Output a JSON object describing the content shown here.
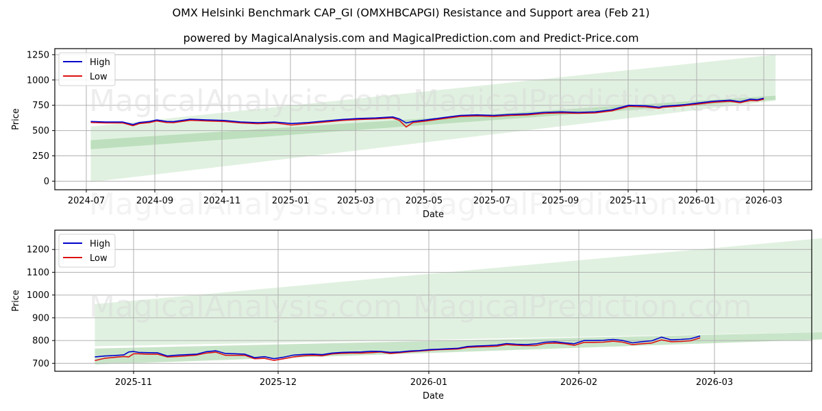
{
  "header": {
    "title": "OMX Helsinki Benchmark CAP_GI (OMXHBCAPGI) Resistance and Support area (Feb 21)",
    "subtitle": "powered by MagicalAnalysis.com and MagicalPrediction.com and Predict-Price.com"
  },
  "watermarks": [
    "MagicalAnalysis.com",
    "MagicalPrediction.com"
  ],
  "colors": {
    "high": "#0000cc",
    "low": "#dd1111",
    "band_light": "#c8e6c8",
    "band_dark": "#a5d3a5",
    "grid": "#b0b0b0"
  },
  "chart_data": [
    {
      "type": "line",
      "title": "",
      "xlabel": "Date",
      "ylabel": "Price",
      "ylim": [
        -85,
        1310
      ],
      "grid": true,
      "legend": {
        "position": "upper left",
        "entries": [
          "High",
          "Low"
        ]
      },
      "x_ticks": [
        "2024-07",
        "2024-09",
        "2024-11",
        "2025-01",
        "2025-03",
        "2025-05",
        "2025-07",
        "2025-09",
        "2025-11",
        "2026-01",
        "2026-03"
      ],
      "y_ticks": [
        0,
        250,
        500,
        750,
        1000,
        1250
      ],
      "x_range_months": [
        -0.4,
        20.5
      ],
      "series": [
        {
          "name": "High",
          "x": [
            0.05,
            0.5,
            1.0,
            1.3,
            1.5,
            1.8,
            2.0,
            2.3,
            2.5,
            3.0,
            3.5,
            4.0,
            4.5,
            5.0,
            5.5,
            6.0,
            6.5,
            7.0,
            7.5,
            8.0,
            8.5,
            9.0,
            9.2,
            9.4,
            9.6,
            10.0,
            10.5,
            11.0,
            11.5,
            12.0,
            12.5,
            13.0,
            13.5,
            14.0,
            14.5,
            15.0,
            15.5,
            16.0,
            16.5,
            16.9,
            17.0,
            17.5,
            17.7,
            18.0,
            18.5,
            19.0,
            19.3,
            19.6,
            19.8,
            20.0
          ],
          "y": [
            590,
            585,
            585,
            560,
            580,
            590,
            605,
            590,
            588,
            612,
            605,
            600,
            585,
            578,
            585,
            570,
            580,
            595,
            610,
            620,
            625,
            635,
            615,
            575,
            590,
            605,
            628,
            650,
            655,
            650,
            660,
            665,
            680,
            685,
            680,
            685,
            705,
            750,
            745,
            730,
            740,
            752,
            758,
            770,
            790,
            800,
            785,
            810,
            805,
            820
          ]
        },
        {
          "name": "Low",
          "x": [
            0.05,
            0.5,
            1.0,
            1.3,
            1.5,
            1.8,
            2.0,
            2.3,
            2.5,
            3.0,
            3.5,
            4.0,
            4.5,
            5.0,
            5.5,
            6.0,
            6.5,
            7.0,
            7.5,
            8.0,
            8.5,
            9.0,
            9.2,
            9.4,
            9.6,
            10.0,
            10.5,
            11.0,
            11.5,
            12.0,
            12.5,
            13.0,
            13.5,
            14.0,
            14.5,
            15.0,
            15.5,
            16.0,
            16.5,
            16.9,
            17.0,
            17.5,
            17.7,
            18.0,
            18.5,
            19.0,
            19.3,
            19.6,
            19.8,
            20.0
          ],
          "y": [
            580,
            575,
            575,
            548,
            570,
            580,
            595,
            580,
            578,
            602,
            595,
            590,
            575,
            568,
            575,
            555,
            570,
            585,
            600,
            610,
            615,
            625,
            600,
            535,
            580,
            595,
            618,
            640,
            645,
            640,
            650,
            655,
            670,
            675,
            670,
            675,
            695,
            740,
            735,
            720,
            730,
            742,
            748,
            760,
            780,
            790,
            775,
            798,
            795,
            810
          ]
        }
      ],
      "bands": [
        {
          "name": "outer",
          "x": [
            0.05,
            20.35
          ],
          "upper": [
            540,
            1250
          ],
          "lower": [
            -10,
            795
          ]
        },
        {
          "name": "inner",
          "x": [
            0.05,
            20.35
          ],
          "upper": [
            405,
            845
          ],
          "lower": [
            315,
            805
          ]
        }
      ]
    },
    {
      "type": "line",
      "title": "",
      "xlabel": "Date",
      "ylabel": "Price",
      "ylim": [
        665,
        1285
      ],
      "grid": true,
      "legend": {
        "position": "upper left",
        "entries": [
          "High",
          "Low"
        ]
      },
      "x_ticks": [
        "2025-11",
        "2025-12",
        "2026-01",
        "2026-02",
        "2026-03"
      ],
      "y_ticks": [
        700,
        800,
        900,
        1000,
        1100,
        1200
      ],
      "x_range_days": [
        -12.5,
        153
      ],
      "series": [
        {
          "name": "High",
          "x": [
            -8,
            -6,
            -4,
            -2,
            -1,
            0,
            1,
            3,
            5,
            7,
            9,
            11,
            13,
            15,
            17,
            19,
            21,
            23,
            25,
            27,
            29,
            31,
            33,
            35,
            37,
            39,
            41,
            43,
            45,
            47,
            49,
            51,
            53,
            55,
            57,
            59,
            61,
            63,
            65,
            67,
            69,
            71,
            73,
            75,
            77,
            79,
            81,
            83,
            85,
            87,
            89,
            91,
            93,
            95,
            97,
            99,
            101,
            103,
            105,
            107,
            109,
            111,
            113,
            115,
            117
          ],
          "y": [
            728,
            732,
            734,
            737,
            750,
            752,
            748,
            747,
            746,
            732,
            736,
            738,
            740,
            751,
            755,
            743,
            742,
            740,
            725,
            729,
            720,
            727,
            736,
            739,
            740,
            738,
            745,
            748,
            749,
            750,
            753,
            752,
            748,
            750,
            754,
            756,
            760,
            762,
            764,
            766,
            774,
            776,
            778,
            780,
            787,
            784,
            782,
            785,
            793,
            795,
            790,
            786,
            800,
            800,
            801,
            805,
            800,
            790,
            795,
            799,
            815,
            803,
            805,
            808,
            820
          ]
        },
        {
          "name": "Low",
          "x": [
            -8,
            -6,
            -4,
            -2,
            -1,
            0,
            1,
            3,
            5,
            7,
            9,
            11,
            13,
            15,
            17,
            19,
            21,
            23,
            25,
            27,
            29,
            31,
            33,
            35,
            37,
            39,
            41,
            43,
            45,
            47,
            49,
            51,
            53,
            55,
            57,
            59,
            61,
            63,
            65,
            67,
            69,
            71,
            73,
            75,
            77,
            79,
            81,
            83,
            85,
            87,
            89,
            91,
            93,
            95,
            97,
            99,
            101,
            103,
            105,
            107,
            109,
            111,
            113,
            115,
            117
          ],
          "y": [
            712,
            722,
            726,
            730,
            728,
            742,
            742,
            740,
            740,
            728,
            730,
            733,
            736,
            745,
            749,
            735,
            735,
            735,
            720,
            722,
            713,
            720,
            728,
            733,
            735,
            733,
            741,
            744,
            745,
            745,
            747,
            750,
            743,
            747,
            751,
            754,
            757,
            760,
            761,
            763,
            770,
            772,
            773,
            775,
            782,
            779,
            778,
            778,
            787,
            789,
            786,
            779,
            792,
            792,
            793,
            797,
            793,
            782,
            786,
            789,
            803,
            795,
            796,
            799,
            812
          ]
        }
      ],
      "bands": [
        {
          "name": "outer",
          "x": [
            -8,
            145
          ],
          "upper": [
            960,
            1255
          ],
          "lower": [
            775,
            838
          ]
        },
        {
          "name": "inner",
          "x": [
            -8,
            145
          ],
          "upper": [
            765,
            838
          ],
          "lower": [
            695,
            807
          ]
        }
      ]
    }
  ]
}
